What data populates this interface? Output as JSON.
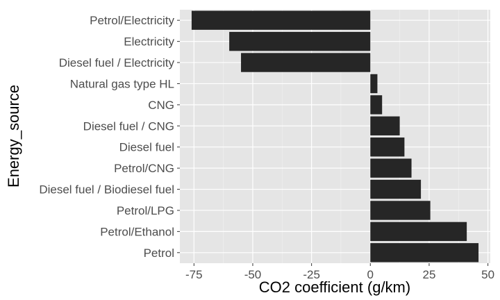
{
  "chart_data": {
    "type": "bar",
    "orientation": "horizontal",
    "xlabel": "CO2 coefficient (g/km)",
    "ylabel": "Energy_source",
    "xlim": [
      -81,
      51
    ],
    "xticks": [
      -75,
      -50,
      -25,
      0,
      25,
      50
    ],
    "xtick_labels": [
      "-75",
      "-50",
      "-25",
      "0",
      "25",
      "50"
    ],
    "grid": true,
    "colors": {
      "panel": "#e5e5e5",
      "grid_major": "#ffffff",
      "grid_minor": "#f2f2f2",
      "bar": "#262626",
      "tick_text": "#4d4d4d"
    },
    "categories": [
      "Petrol/Electricity",
      "Electricity",
      "Diesel fuel / Electricity",
      "Natural gas type HL",
      "CNG",
      "Diesel fuel / CNG",
      "Diesel fuel",
      "Petrol/CNG",
      "Diesel fuel / Biodiesel fuel",
      "Petrol/LPG",
      "Petrol/Ethanol",
      "Petrol"
    ],
    "values": [
      -76,
      -60,
      -55,
      3,
      5,
      12.5,
      14.5,
      17.5,
      21.5,
      25.5,
      41,
      46
    ]
  }
}
